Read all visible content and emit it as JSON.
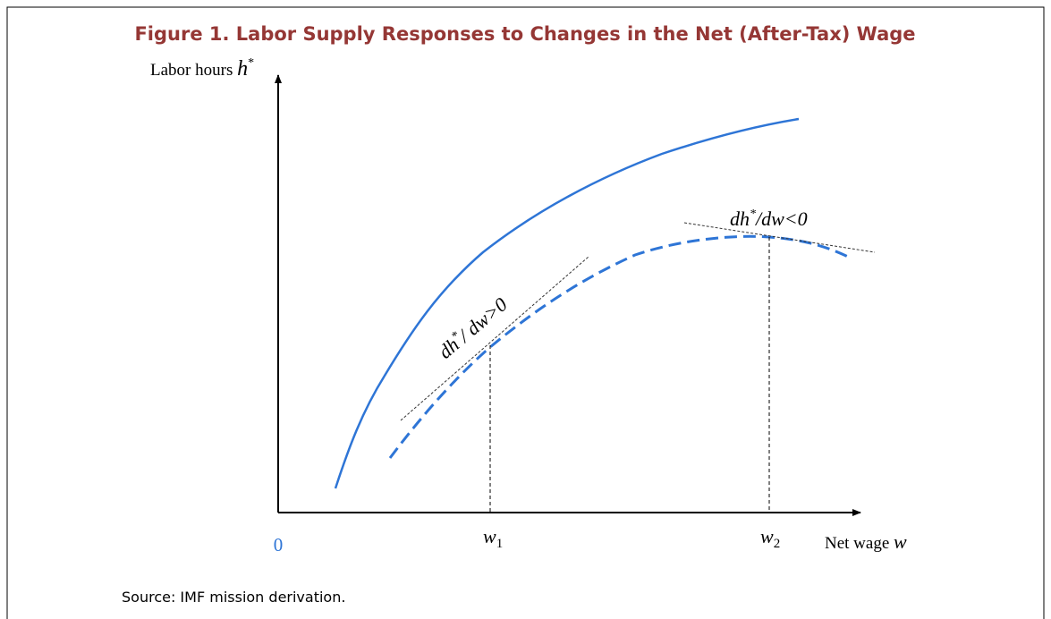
{
  "header": {
    "title": "Figure 1. Labor Supply Responses to Changes in the Net (After-Tax) Wage"
  },
  "axes": {
    "y_label": {
      "text": "Labor hours",
      "var": "h",
      "sup": "*"
    },
    "x_label": {
      "text": "Net wage",
      "var": "w"
    },
    "origin": "0",
    "x_marks": [
      {
        "var": "w",
        "sub": "1"
      },
      {
        "var": "w",
        "sub": "2"
      }
    ]
  },
  "annotations": [
    {
      "pre": "dh",
      "sup": "*",
      "post": "/ dw>0"
    },
    {
      "pre": "dh",
      "sup": "*",
      "post": "/dw<0"
    }
  ],
  "footer": {
    "source": "Source: IMF mission derivation."
  }
}
